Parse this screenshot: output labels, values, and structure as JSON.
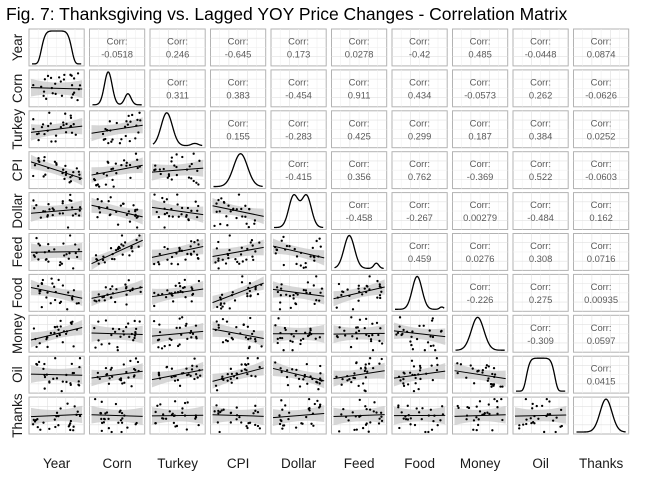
{
  "chart_data": {
    "type": "scatter-matrix",
    "title": "Fig. 7: Thanksgiving vs. Lagged YOY Price Changes - Correlation Matrix",
    "variables": [
      "Year",
      "Corn",
      "Turkey",
      "CPI",
      "Dollar",
      "Feed",
      "Food",
      "Money",
      "Oil",
      "Thanks"
    ],
    "corr_label": "Corr:",
    "upper_panels": "correlation text",
    "diagonal_panels": "density curve",
    "lower_panels": "scatter with linear fit and confidence band",
    "grid": true,
    "correlations": [
      {
        "row": "Year",
        "col": "Corn",
        "value": "-0.0518"
      },
      {
        "row": "Year",
        "col": "Turkey",
        "value": "0.246"
      },
      {
        "row": "Year",
        "col": "CPI",
        "value": "-0.645"
      },
      {
        "row": "Year",
        "col": "Dollar",
        "value": "0.173"
      },
      {
        "row": "Year",
        "col": "Feed",
        "value": "0.0278"
      },
      {
        "row": "Year",
        "col": "Food",
        "value": "-0.42"
      },
      {
        "row": "Year",
        "col": "Money",
        "value": "0.485"
      },
      {
        "row": "Year",
        "col": "Oil",
        "value": "-0.0448"
      },
      {
        "row": "Year",
        "col": "Thanks",
        "value": "0.0874"
      },
      {
        "row": "Corn",
        "col": "Turkey",
        "value": "0.311"
      },
      {
        "row": "Corn",
        "col": "CPI",
        "value": "0.383"
      },
      {
        "row": "Corn",
        "col": "Dollar",
        "value": "-0.454"
      },
      {
        "row": "Corn",
        "col": "Feed",
        "value": "0.911"
      },
      {
        "row": "Corn",
        "col": "Food",
        "value": "0.434"
      },
      {
        "row": "Corn",
        "col": "Money",
        "value": "-0.0573"
      },
      {
        "row": "Corn",
        "col": "Oil",
        "value": "0.262"
      },
      {
        "row": "Corn",
        "col": "Thanks",
        "value": "-0.0626"
      },
      {
        "row": "Turkey",
        "col": "CPI",
        "value": "0.155"
      },
      {
        "row": "Turkey",
        "col": "Dollar",
        "value": "-0.283"
      },
      {
        "row": "Turkey",
        "col": "Feed",
        "value": "0.425"
      },
      {
        "row": "Turkey",
        "col": "Food",
        "value": "0.299"
      },
      {
        "row": "Turkey",
        "col": "Money",
        "value": "0.187"
      },
      {
        "row": "Turkey",
        "col": "Oil",
        "value": "0.384"
      },
      {
        "row": "Turkey",
        "col": "Thanks",
        "value": "0.0252"
      },
      {
        "row": "CPI",
        "col": "Dollar",
        "value": "-0.415"
      },
      {
        "row": "CPI",
        "col": "Feed",
        "value": "0.356"
      },
      {
        "row": "CPI",
        "col": "Food",
        "value": "0.762"
      },
      {
        "row": "CPI",
        "col": "Money",
        "value": "-0.369"
      },
      {
        "row": "CPI",
        "col": "Oil",
        "value": "0.522"
      },
      {
        "row": "CPI",
        "col": "Thanks",
        "value": "-0.0603"
      },
      {
        "row": "Dollar",
        "col": "Feed",
        "value": "-0.458"
      },
      {
        "row": "Dollar",
        "col": "Food",
        "value": "-0.267"
      },
      {
        "row": "Dollar",
        "col": "Money",
        "value": "0.00279"
      },
      {
        "row": "Dollar",
        "col": "Oil",
        "value": "-0.484"
      },
      {
        "row": "Dollar",
        "col": "Thanks",
        "value": "0.162"
      },
      {
        "row": "Feed",
        "col": "Food",
        "value": "0.459"
      },
      {
        "row": "Feed",
        "col": "Money",
        "value": "0.0276"
      },
      {
        "row": "Feed",
        "col": "Oil",
        "value": "0.308"
      },
      {
        "row": "Feed",
        "col": "Thanks",
        "value": "0.0716"
      },
      {
        "row": "Food",
        "col": "Money",
        "value": "-0.226"
      },
      {
        "row": "Food",
        "col": "Oil",
        "value": "0.275"
      },
      {
        "row": "Food",
        "col": "Thanks",
        "value": "0.00935"
      },
      {
        "row": "Money",
        "col": "Oil",
        "value": "-0.309"
      },
      {
        "row": "Money",
        "col": "Thanks",
        "value": "0.0597"
      },
      {
        "row": "Oil",
        "col": "Thanks",
        "value": "0.0415"
      }
    ]
  }
}
